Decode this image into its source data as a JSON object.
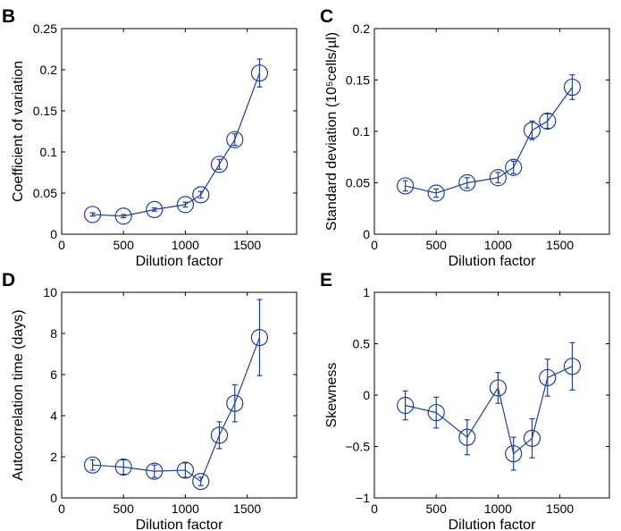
{
  "colors": {
    "series": "#1f3f9b",
    "axis": "#000000"
  },
  "chart_data": [
    {
      "panel": "B",
      "type": "line",
      "xlabel": "Dilution factor",
      "ylabel": "Coefficient of variation",
      "xlim": [
        0,
        1900
      ],
      "ylim": [
        0,
        0.25
      ],
      "xticks": [
        0,
        500,
        1000,
        1500
      ],
      "yticks": [
        0,
        0.05,
        0.1,
        0.15,
        0.2,
        0.25
      ],
      "ytick_labels": [
        "0",
        "0.05",
        "0.1",
        "0.15",
        "0.2",
        "0.25"
      ],
      "grid": false,
      "x": [
        250,
        500,
        750,
        1000,
        1125,
        1275,
        1400,
        1600
      ],
      "y": [
        0.024,
        0.022,
        0.03,
        0.036,
        0.048,
        0.085,
        0.115,
        0.196
      ],
      "err": [
        0.002,
        0.002,
        0.002,
        0.003,
        0.004,
        0.006,
        0.007,
        0.017
      ]
    },
    {
      "panel": "C",
      "type": "line",
      "xlabel": "Dilution factor",
      "ylabel": "Standard deviation (10⁵cells/µl)",
      "xlim": [
        0,
        1900
      ],
      "ylim": [
        0,
        0.2
      ],
      "xticks": [
        0,
        500,
        1000,
        1500
      ],
      "yticks": [
        0,
        0.05,
        0.1,
        0.15,
        0.2
      ],
      "ytick_labels": [
        "0",
        "0.05",
        "0.1",
        "0.15",
        "0.2"
      ],
      "grid": false,
      "x": [
        250,
        500,
        750,
        1000,
        1125,
        1275,
        1400,
        1600
      ],
      "y": [
        0.047,
        0.04,
        0.05,
        0.055,
        0.065,
        0.101,
        0.11,
        0.143
      ],
      "err": [
        0.005,
        0.004,
        0.005,
        0.005,
        0.006,
        0.009,
        0.007,
        0.012
      ]
    },
    {
      "panel": "D",
      "type": "line",
      "xlabel": "Dilution factor",
      "ylabel": "Autocorrelation time (days)",
      "xlim": [
        0,
        1900
      ],
      "ylim": [
        0,
        10
      ],
      "xticks": [
        0,
        500,
        1000,
        1500
      ],
      "yticks": [
        0,
        2,
        4,
        6,
        8,
        10
      ],
      "ytick_labels": [
        "0",
        "2",
        "4",
        "6",
        "8",
        "10"
      ],
      "grid": false,
      "x": [
        250,
        500,
        750,
        1000,
        1125,
        1275,
        1400,
        1600
      ],
      "y": [
        1.6,
        1.5,
        1.3,
        1.35,
        0.8,
        3.05,
        4.6,
        7.8
      ],
      "err": [
        0.25,
        0.35,
        0.3,
        0.35,
        0.2,
        0.65,
        0.9,
        1.85
      ]
    },
    {
      "panel": "E",
      "type": "line",
      "xlabel": "Dilution factor",
      "ylabel": "Skewness",
      "xlim": [
        0,
        1900
      ],
      "ylim": [
        -1,
        1
      ],
      "xticks": [
        0,
        500,
        1000,
        1500
      ],
      "yticks": [
        -1,
        -0.5,
        0,
        0.5,
        1
      ],
      "ytick_labels": [
        "−1",
        "−0.5",
        "0",
        "0.5",
        "1"
      ],
      "grid": false,
      "x": [
        250,
        500,
        750,
        1000,
        1125,
        1275,
        1400,
        1600
      ],
      "y": [
        -0.1,
        -0.17,
        -0.41,
        0.07,
        -0.57,
        -0.42,
        0.17,
        0.28
      ],
      "err": [
        0.14,
        0.15,
        0.17,
        0.15,
        0.16,
        0.19,
        0.18,
        0.23
      ]
    }
  ]
}
